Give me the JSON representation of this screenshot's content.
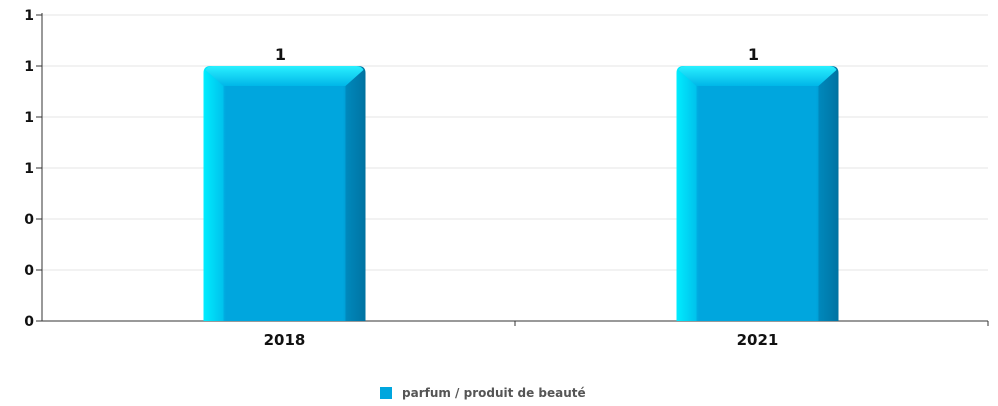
{
  "chart_data": {
    "type": "bar",
    "categories": [
      "2018",
      "2021"
    ],
    "series": [
      {
        "name": "parfum / produit de beauté",
        "values": [
          1,
          1
        ]
      }
    ],
    "y_tick_labels": [
      "0",
      "0",
      "0",
      "1",
      "1",
      "1",
      "1"
    ],
    "ylim": [
      0,
      1.2
    ],
    "data_labels": [
      "1",
      "1"
    ],
    "grid": true,
    "legend_position": "bottom-center",
    "colors": {
      "bar_main": "#00a6de",
      "bar_left": "#00e4ff",
      "bar_right": "#0077a8",
      "bar_top": "#25e8ff",
      "grid": "#e6e6e6",
      "axis": "#333333"
    }
  }
}
